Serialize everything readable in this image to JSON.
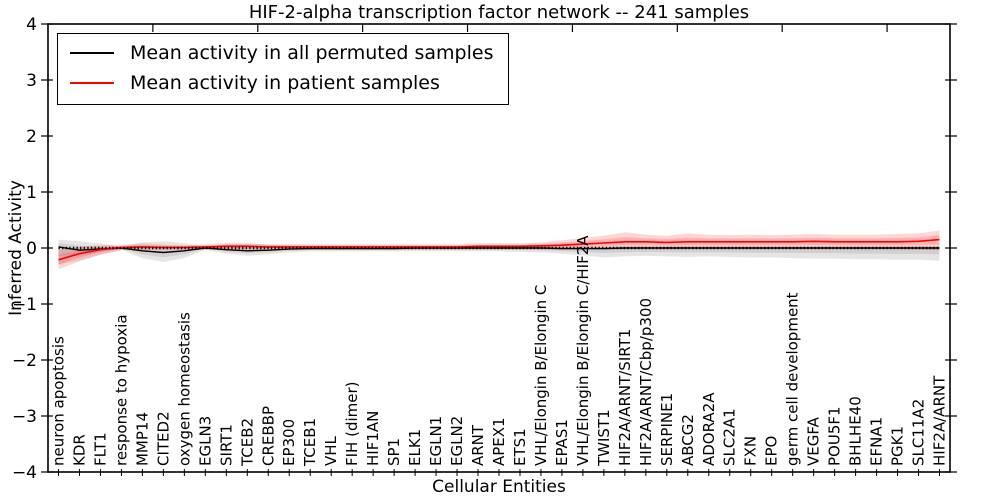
{
  "title": "HIF-2-alpha transcription factor network -- 241 samples",
  "legend": [
    {
      "label": "Mean activity in all permuted samples",
      "color": "#000000"
    },
    {
      "label": "Mean activity in patient samples",
      "color": "#ff0000"
    }
  ],
  "chart_data": {
    "type": "line",
    "title": "HIF-2-alpha transcription factor network -- 241 samples",
    "xlabel": "Cellular Entities",
    "ylabel": "Inferred Activity",
    "ylim": [
      -4,
      4
    ],
    "yticks": [
      4,
      3,
      2,
      1,
      0,
      -1,
      -2,
      -3,
      -4
    ],
    "grid": false,
    "legend_position": "upper left",
    "zero_reference_line": 0,
    "categories": [
      "neuron apoptosis",
      "KDR",
      "FLT1",
      "response to hypoxia",
      "MMP14",
      "CITED2",
      "oxygen homeostasis",
      "EGLN3",
      "SIRT1",
      "TCEB2",
      "CREBBP",
      "EP300",
      "TCEB1",
      "VHL",
      "FIH (dimer)",
      "HIF1AN",
      "SP1",
      "ELK1",
      "EGLN1",
      "EGLN2",
      "ARNT",
      "APEX1",
      "ETS1",
      "VHL/Elongin B/Elongin C",
      "EPAS1",
      "VHL/Elongin B/Elongin C/HIF2A",
      "TWIST1",
      "HIF2A/ARNT/SIRT1",
      "HIF2A/ARNT/Cbp/p300",
      "SERPINE1",
      "ABCG2",
      "ADORA2A",
      "SLC2A1",
      "FXN",
      "EPO",
      "germ cell development",
      "VEGFA",
      "POU5F1",
      "BHLHE40",
      "EFNA1",
      "PGK1",
      "SLC11A2",
      "HIF2A/ARNT"
    ],
    "series": [
      {
        "name": "Mean activity in all permuted samples",
        "color": "#000000",
        "values": [
          0.02,
          -0.04,
          -0.02,
          0.0,
          -0.05,
          -0.08,
          -0.05,
          0.0,
          -0.03,
          -0.05,
          -0.04,
          -0.02,
          -0.01,
          -0.01,
          -0.01,
          -0.01,
          -0.01,
          0.0,
          0.0,
          0.0,
          0.0,
          0.0,
          0.0,
          0.0,
          -0.01,
          -0.01,
          -0.01,
          0.0,
          0.0,
          0.0,
          0.0,
          0.0,
          0.0,
          0.0,
          0.0,
          0.0,
          0.0,
          0.0,
          0.0,
          0.0,
          0.0,
          0.0,
          0.0
        ]
      },
      {
        "name": "Mean activity in patient samples",
        "color": "#ff0000",
        "values": [
          -0.21,
          -0.1,
          -0.03,
          0.01,
          0.02,
          0.01,
          0.01,
          0.02,
          0.03,
          0.03,
          0.02,
          0.02,
          0.02,
          0.02,
          0.02,
          0.02,
          0.02,
          0.02,
          0.02,
          0.02,
          0.03,
          0.03,
          0.03,
          0.04,
          0.05,
          0.07,
          0.09,
          0.11,
          0.11,
          0.1,
          0.11,
          0.11,
          0.11,
          0.11,
          0.11,
          0.11,
          0.12,
          0.11,
          0.11,
          0.11,
          0.11,
          0.12,
          0.15
        ]
      }
    ],
    "bands": [
      {
        "name": "permuted-samples-range",
        "color": "#888888",
        "opacity": 0.22,
        "upper": [
          0.15,
          0.12,
          0.08,
          0.02,
          0.1,
          0.12,
          0.09,
          0.02,
          0.06,
          0.08,
          0.06,
          0.04,
          0.03,
          0.03,
          0.03,
          0.03,
          0.03,
          0.03,
          0.03,
          0.03,
          0.03,
          0.03,
          0.03,
          0.03,
          0.03,
          0.03,
          0.03,
          0.03,
          0.03,
          0.03,
          0.03,
          0.03,
          0.03,
          0.03,
          0.03,
          0.03,
          0.03,
          0.03,
          0.03,
          0.03,
          0.03,
          0.03,
          0.04
        ],
        "lower": [
          -0.3,
          -0.22,
          -0.12,
          -0.03,
          -0.18,
          -0.25,
          -0.18,
          -0.03,
          -0.1,
          -0.14,
          -0.11,
          -0.08,
          -0.06,
          -0.06,
          -0.06,
          -0.06,
          -0.06,
          -0.06,
          -0.06,
          -0.06,
          -0.06,
          -0.06,
          -0.07,
          -0.08,
          -0.1,
          -0.13,
          -0.17,
          -0.15,
          -0.14,
          -0.15,
          -0.16,
          -0.15,
          -0.16,
          -0.17,
          -0.17,
          -0.18,
          -0.19,
          -0.19,
          -0.2,
          -0.2,
          -0.21,
          -0.21,
          -0.23
        ]
      },
      {
        "name": "patient-samples-range",
        "color": "#ff0000",
        "opacity": 0.16,
        "upper": [
          -0.04,
          0.02,
          0.05,
          0.06,
          0.08,
          0.06,
          0.05,
          0.07,
          0.09,
          0.08,
          0.07,
          0.07,
          0.07,
          0.07,
          0.07,
          0.07,
          0.07,
          0.07,
          0.07,
          0.07,
          0.08,
          0.08,
          0.08,
          0.1,
          0.14,
          0.18,
          0.22,
          0.28,
          0.24,
          0.22,
          0.26,
          0.24,
          0.23,
          0.24,
          0.23,
          0.24,
          0.25,
          0.24,
          0.24,
          0.24,
          0.25,
          0.26,
          0.31
        ],
        "lower": [
          -0.38,
          -0.24,
          -0.12,
          -0.04,
          -0.03,
          -0.03,
          -0.03,
          -0.02,
          -0.02,
          -0.02,
          -0.02,
          -0.02,
          -0.02,
          -0.02,
          -0.02,
          -0.02,
          -0.02,
          -0.02,
          -0.02,
          -0.02,
          -0.02,
          -0.02,
          -0.02,
          -0.02,
          -0.02,
          -0.02,
          -0.02,
          -0.02,
          -0.02,
          -0.02,
          -0.02,
          -0.02,
          -0.02,
          -0.02,
          -0.02,
          -0.02,
          -0.02,
          -0.02,
          -0.02,
          -0.02,
          -0.02,
          -0.03,
          -0.04
        ]
      }
    ]
  }
}
